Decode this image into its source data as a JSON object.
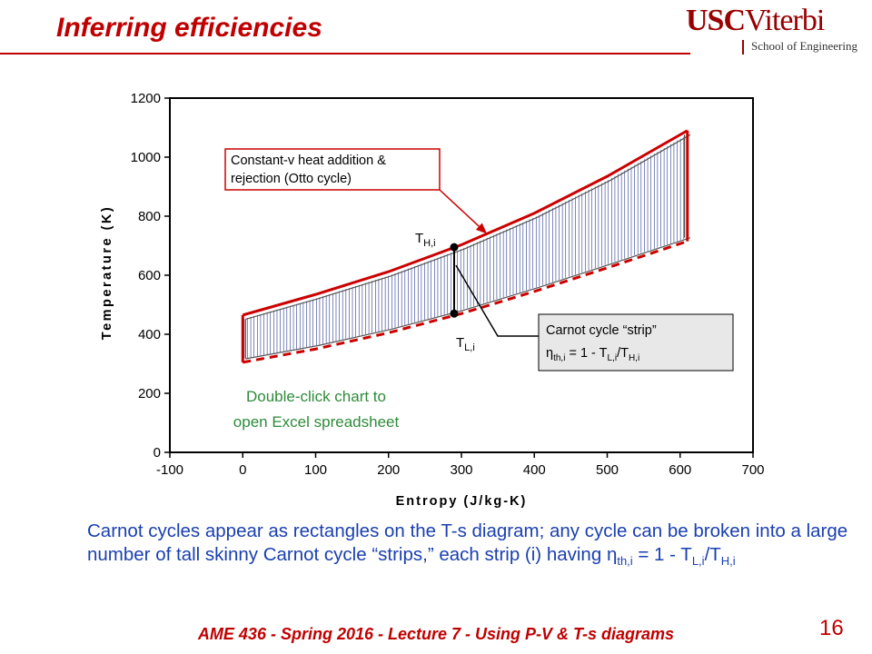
{
  "slide": {
    "title": "Inferring efficiencies",
    "logo": {
      "mark_left": "USC",
      "mark_right": "Viterbi",
      "sub": "School of Engineering"
    },
    "caption": {
      "p1": "Carnot cycles appear as rectangles on the T-s diagram; any cycle can be broken into a large number of tall skinny Carnot cycle “strips,” each strip (i) having ",
      "eta": "η",
      "eta_sub": "th,i",
      "p2": " = 1 - T",
      "tl_sub": "L,i",
      "p3": "/T",
      "th_sub": "H,i"
    },
    "footer": "AME 436 - Spring 2016 - Lecture 7 - Using P-V & T-s diagrams",
    "page_number": "16"
  },
  "chart_data": {
    "type": "line",
    "xlabel": "Entropy (J/kg-K)",
    "ylabel": "Temperature (K)",
    "xlim": [
      -100,
      700
    ],
    "ylim": [
      0,
      1200
    ],
    "x_ticks": [
      "-100",
      "0",
      "100",
      "200",
      "300",
      "400",
      "500",
      "600",
      "700"
    ],
    "y_ticks": [
      "0",
      "200",
      "400",
      "600",
      "800",
      "1000",
      "1200"
    ],
    "grid": false,
    "legend": "none",
    "colors": {
      "cycle": "#cc0000",
      "strips": "#2a3a8c",
      "callout_fill": "#e8e8e8",
      "note_text": "#2e8b3a"
    },
    "series": [
      {
        "name": "",
        "style": "solid",
        "x": [
          0,
          100,
          200,
          300,
          400,
          500,
          610
        ],
        "y": [
          465,
          535,
          612,
          703,
          810,
          935,
          1090
        ]
      },
      {
        "name": "",
        "style": "dashed",
        "x": [
          0,
          100,
          200,
          300,
          400,
          500,
          610
        ],
        "y": [
          305,
          350,
          405,
          470,
          545,
          625,
          715
        ]
      }
    ],
    "strip_marker": {
      "s": 290,
      "T_high": 695,
      "T_low": 470
    },
    "annotations": {
      "otto_line1": "Constant-v heat addition &",
      "otto_line2": "rejection (Otto cycle)",
      "th_label": "T",
      "th_sub": "H,i",
      "tl_label": "T",
      "tl_sub": "L,i",
      "carnot_line1": "Carnot cycle “strip”",
      "carnot_eta": "η",
      "carnot_eta_sub": "th,i",
      "carnot_eq_mid": " = 1 - T",
      "carnot_l_sub": "L,i",
      "carnot_eq_slash": "/T",
      "carnot_h_sub": "H,i",
      "note_line1": "Double-click chart to",
      "note_line2": "open Excel spreadsheet"
    }
  }
}
